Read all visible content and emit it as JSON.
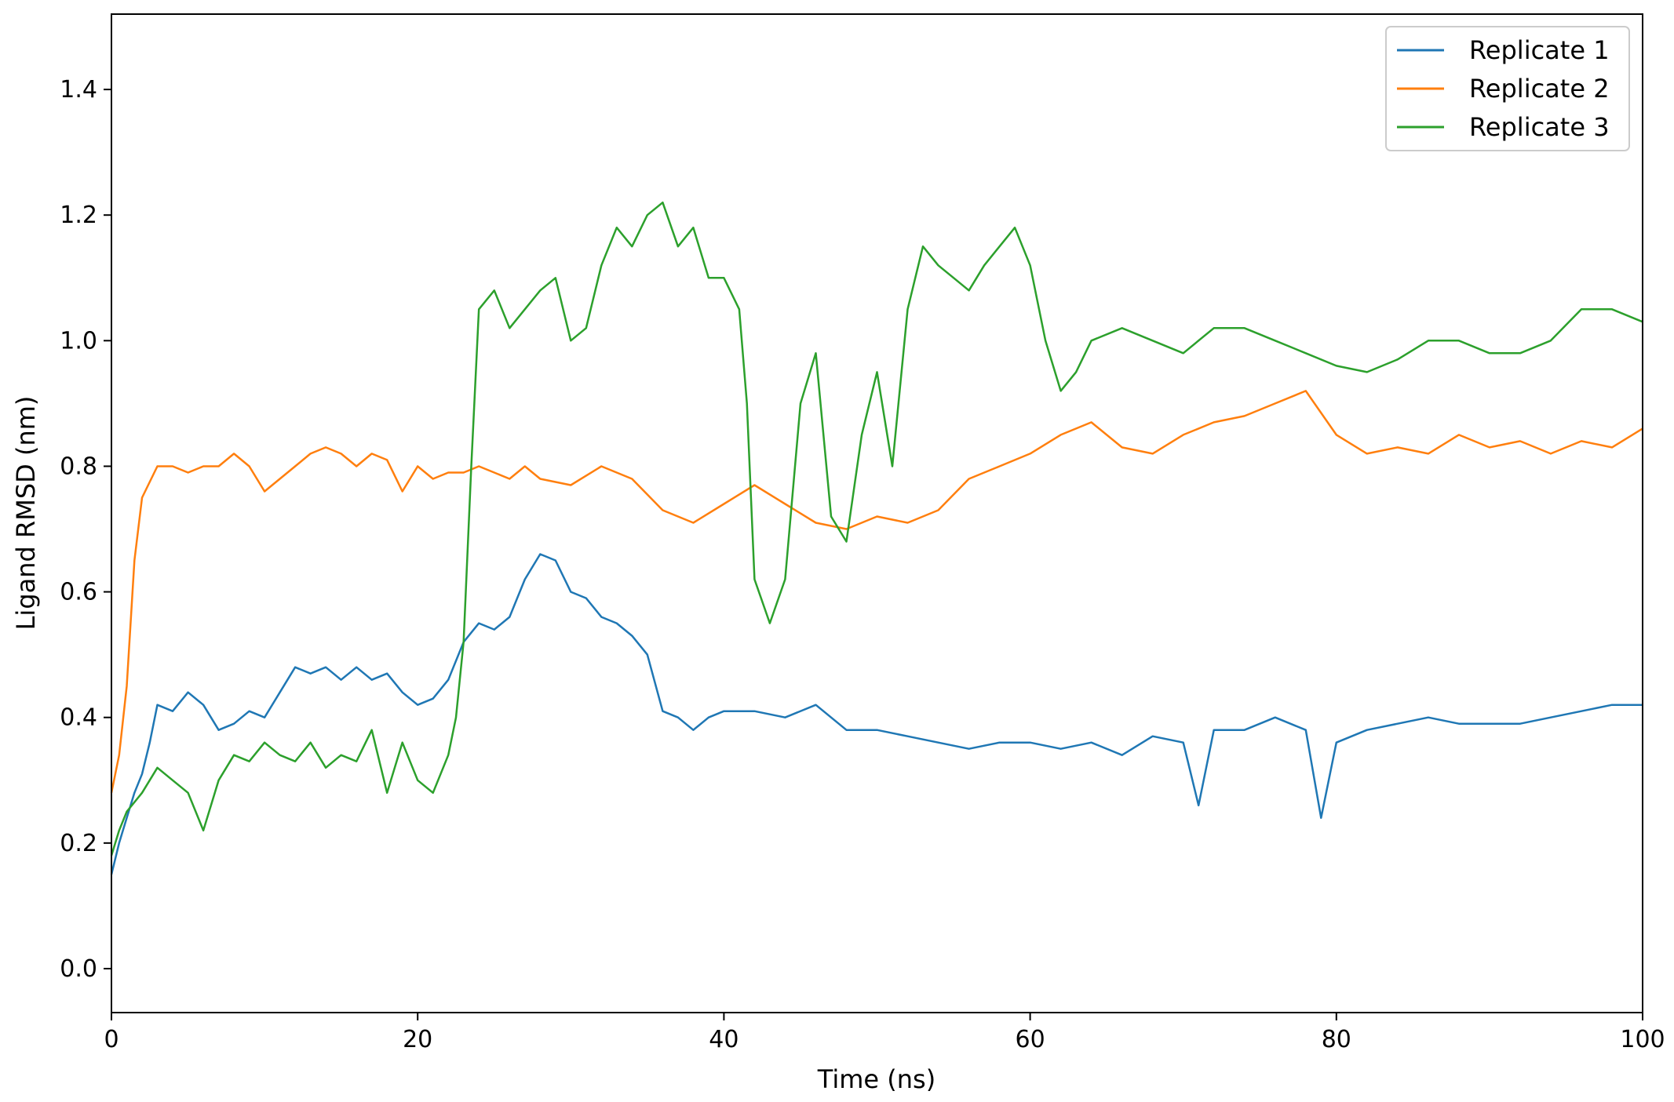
{
  "chart_data": {
    "type": "line",
    "title": "",
    "xlabel": "Time (ns)",
    "ylabel": "Ligand RMSD (nm)",
    "xlim": [
      0,
      100
    ],
    "ylim": [
      -0.07,
      1.52
    ],
    "xticks": [
      0,
      20,
      40,
      60,
      80,
      100
    ],
    "yticks": [
      0.0,
      0.2,
      0.4,
      0.6,
      0.8,
      1.0,
      1.2,
      1.4
    ],
    "ytick_labels": [
      "0.0",
      "0.2",
      "0.4",
      "0.6",
      "0.8",
      "1.0",
      "1.2",
      "1.4"
    ],
    "grid": false,
    "legend_position": "top-right",
    "series": [
      {
        "name": "Replicate 1",
        "color": "#1f77b4",
        "x": [
          0,
          0.5,
          1,
          1.5,
          2,
          2.5,
          3,
          4,
          5,
          6,
          7,
          8,
          9,
          10,
          11,
          12,
          13,
          14,
          15,
          16,
          17,
          18,
          19,
          20,
          21,
          22,
          23,
          24,
          25,
          26,
          27,
          28,
          29,
          30,
          31,
          32,
          33,
          34,
          35,
          36,
          37,
          38,
          39,
          40,
          42,
          44,
          46,
          48,
          50,
          52,
          54,
          56,
          58,
          60,
          62,
          64,
          66,
          68,
          70,
          71,
          72,
          74,
          76,
          78,
          79,
          80,
          82,
          84,
          86,
          88,
          90,
          92,
          94,
          96,
          98,
          100
        ],
        "y": [
          0.15,
          0.2,
          0.24,
          0.28,
          0.31,
          0.36,
          0.42,
          0.41,
          0.44,
          0.42,
          0.38,
          0.39,
          0.41,
          0.4,
          0.44,
          0.48,
          0.47,
          0.48,
          0.46,
          0.48,
          0.46,
          0.47,
          0.44,
          0.42,
          0.43,
          0.46,
          0.52,
          0.55,
          0.54,
          0.56,
          0.62,
          0.66,
          0.65,
          0.6,
          0.59,
          0.56,
          0.55,
          0.53,
          0.5,
          0.41,
          0.4,
          0.38,
          0.4,
          0.41,
          0.41,
          0.4,
          0.42,
          0.38,
          0.38,
          0.37,
          0.36,
          0.35,
          0.36,
          0.36,
          0.35,
          0.36,
          0.34,
          0.37,
          0.36,
          0.26,
          0.38,
          0.38,
          0.4,
          0.38,
          0.24,
          0.36,
          0.38,
          0.39,
          0.4,
          0.39,
          0.39,
          0.39,
          0.4,
          0.41,
          0.42,
          0.42
        ]
      },
      {
        "name": "Replicate 2",
        "color": "#ff7f0e",
        "x": [
          0,
          0.5,
          1,
          1.5,
          2,
          3,
          4,
          5,
          6,
          7,
          8,
          9,
          10,
          11,
          12,
          13,
          14,
          15,
          16,
          17,
          18,
          19,
          20,
          21,
          22,
          23,
          24,
          25,
          26,
          27,
          28,
          30,
          32,
          34,
          36,
          38,
          40,
          42,
          44,
          46,
          48,
          50,
          52,
          54,
          56,
          58,
          60,
          62,
          64,
          66,
          68,
          70,
          72,
          74,
          76,
          78,
          80,
          82,
          84,
          86,
          88,
          90,
          92,
          94,
          96,
          98,
          100
        ],
        "y": [
          0.28,
          0.34,
          0.45,
          0.65,
          0.75,
          0.8,
          0.8,
          0.79,
          0.8,
          0.8,
          0.82,
          0.8,
          0.76,
          0.78,
          0.8,
          0.82,
          0.83,
          0.82,
          0.8,
          0.82,
          0.81,
          0.76,
          0.8,
          0.78,
          0.79,
          0.79,
          0.8,
          0.79,
          0.78,
          0.8,
          0.78,
          0.77,
          0.8,
          0.78,
          0.73,
          0.71,
          0.74,
          0.77,
          0.74,
          0.71,
          0.7,
          0.72,
          0.71,
          0.73,
          0.78,
          0.8,
          0.82,
          0.85,
          0.87,
          0.83,
          0.82,
          0.85,
          0.87,
          0.88,
          0.9,
          0.92,
          0.85,
          0.82,
          0.83,
          0.82,
          0.85,
          0.83,
          0.84,
          0.82,
          0.84,
          0.83,
          0.86
        ]
      },
      {
        "name": "Replicate 3",
        "color": "#2ca02c",
        "x": [
          0,
          0.5,
          1,
          2,
          3,
          4,
          5,
          6,
          7,
          8,
          9,
          10,
          11,
          12,
          13,
          14,
          15,
          16,
          17,
          18,
          19,
          20,
          21,
          22,
          22.5,
          23,
          23.5,
          24,
          25,
          26,
          27,
          28,
          29,
          30,
          31,
          32,
          33,
          34,
          35,
          36,
          37,
          38,
          39,
          40,
          41,
          41.5,
          42,
          43,
          44,
          45,
          46,
          47,
          48,
          49,
          50,
          51,
          52,
          53,
          54,
          55,
          56,
          57,
          58,
          59,
          60,
          61,
          62,
          63,
          64,
          66,
          68,
          70,
          72,
          74,
          76,
          78,
          80,
          82,
          84,
          86,
          88,
          90,
          92,
          94,
          96,
          98,
          100
        ],
        "y": [
          0.18,
          0.22,
          0.25,
          0.28,
          0.32,
          0.3,
          0.28,
          0.22,
          0.3,
          0.34,
          0.33,
          0.36,
          0.34,
          0.33,
          0.36,
          0.32,
          0.34,
          0.33,
          0.38,
          0.28,
          0.36,
          0.3,
          0.28,
          0.34,
          0.4,
          0.52,
          0.8,
          1.05,
          1.08,
          1.02,
          1.05,
          1.08,
          1.1,
          1.0,
          1.02,
          1.12,
          1.18,
          1.15,
          1.2,
          1.22,
          1.15,
          1.18,
          1.1,
          1.1,
          1.05,
          0.9,
          0.62,
          0.55,
          0.62,
          0.9,
          0.98,
          0.72,
          0.68,
          0.85,
          0.95,
          0.8,
          1.05,
          1.15,
          1.12,
          1.1,
          1.08,
          1.12,
          1.15,
          1.18,
          1.12,
          1.0,
          0.92,
          0.95,
          1.0,
          1.02,
          1.0,
          0.98,
          1.02,
          1.02,
          1.0,
          0.98,
          0.96,
          0.95,
          0.97,
          1.0,
          1.0,
          0.98,
          0.98,
          1.0,
          1.05,
          1.05,
          1.03
        ]
      }
    ]
  }
}
